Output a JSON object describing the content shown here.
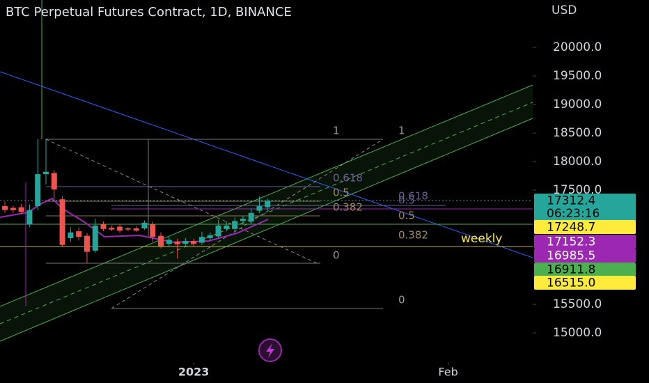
{
  "chart_data": {
    "type": "candlestick",
    "title": "BTC Perpetual Futures Contract, 1D, BINANCE",
    "currency": "USD",
    "up_color": "#26a69a",
    "down_color": "#ef5350",
    "xlim": [
      -23.6,
      41.3
    ],
    "ylim": [
      14488,
      20830
    ],
    "xticks": [
      {
        "value": 0,
        "label": "2023"
      },
      {
        "value": 31,
        "label": "Feb"
      }
    ],
    "yticks": [
      {
        "value": 15000,
        "label": "15000.0"
      },
      {
        "value": 15500,
        "label": "15500.0"
      },
      {
        "value": 17500,
        "label": "17500.0"
      },
      {
        "value": 18000,
        "label": "18000.0"
      },
      {
        "value": 18500,
        "label": "18500.0"
      },
      {
        "value": 19000,
        "label": "19000.0"
      },
      {
        "value": 19500,
        "label": "19500.0"
      },
      {
        "value": 20000,
        "label": "20000.0"
      }
    ],
    "x": [
      -23,
      -22,
      -21,
      -20,
      -19,
      -18,
      -17,
      -16,
      -15,
      -14,
      -13,
      -12,
      -11,
      -10,
      -9,
      -8,
      -7,
      -6,
      -5,
      -4,
      -3,
      -2,
      -1,
      0,
      1,
      2,
      3,
      4,
      5,
      6,
      7,
      8,
      9
    ],
    "open": [
      17220,
      17190,
      17200,
      16900,
      17220,
      17780,
      17800,
      17340,
      16660,
      16780,
      16700,
      16440,
      16900,
      16840,
      16860,
      16830,
      16830,
      16830,
      16900,
      16700,
      16560,
      16600,
      16560,
      16610,
      16580,
      16660,
      16690,
      16820,
      16820,
      16960,
      16950,
      17140,
      17200
    ],
    "high": [
      17300,
      17230,
      17260,
      17250,
      18390,
      18400,
      17850,
      17400,
      16850,
      16850,
      16750,
      17000,
      16950,
      16880,
      16900,
      16850,
      16870,
      16970,
      16950,
      16760,
      16680,
      16650,
      16660,
      16650,
      16770,
      16760,
      16980,
      16950,
      17020,
      17050,
      17180,
      17390,
      17350
    ],
    "low": [
      17100,
      17100,
      17080,
      16850,
      17150,
      17600,
      17350,
      16500,
      16600,
      16620,
      16220,
      16400,
      16780,
      16780,
      16750,
      16780,
      16770,
      16800,
      16600,
      16480,
      16500,
      16300,
      16520,
      16510,
      16540,
      16620,
      16650,
      16780,
      16760,
      16900,
      16900,
      17100,
      17150
    ],
    "close": [
      17150,
      17150,
      17120,
      17150,
      17780,
      17820,
      17510,
      16540,
      16760,
      16680,
      16420,
      16880,
      16820,
      16810,
      16790,
      16810,
      16790,
      16930,
      16680,
      16520,
      16630,
      16550,
      16610,
      16560,
      16680,
      16710,
      16880,
      16880,
      16960,
      17000,
      17100,
      17220,
      17312.4
    ],
    "price_labels": [
      {
        "value": 17312.4,
        "label": "17312.4",
        "color": "#26a69a",
        "text_color": "#000"
      },
      {
        "value": 17248.7,
        "label": "17248.7",
        "color": "#ffeb3b",
        "text_color": "#000"
      },
      {
        "value": 17152.3,
        "label": "17152.3",
        "color": "#9c27b0",
        "text_color": "#fff"
      },
      {
        "value": 16985.5,
        "label": "16985.5",
        "color": "#9c27b0",
        "text_color": "#fff"
      },
      {
        "value": 16911.8,
        "label": "16911.8",
        "color": "#4caf50",
        "text_color": "#000"
      },
      {
        "value": 16515.0,
        "label": "16515.0",
        "color": "#ffeb3b",
        "text_color": "#000"
      }
    ],
    "countdown": "06:23:16",
    "annotations": [
      "1",
      "1",
      "0.618",
      "0.5",
      "0.382",
      "0.618",
      "0.5",
      "0.5",
      "0.382",
      "0",
      "0",
      "weekly"
    ]
  }
}
